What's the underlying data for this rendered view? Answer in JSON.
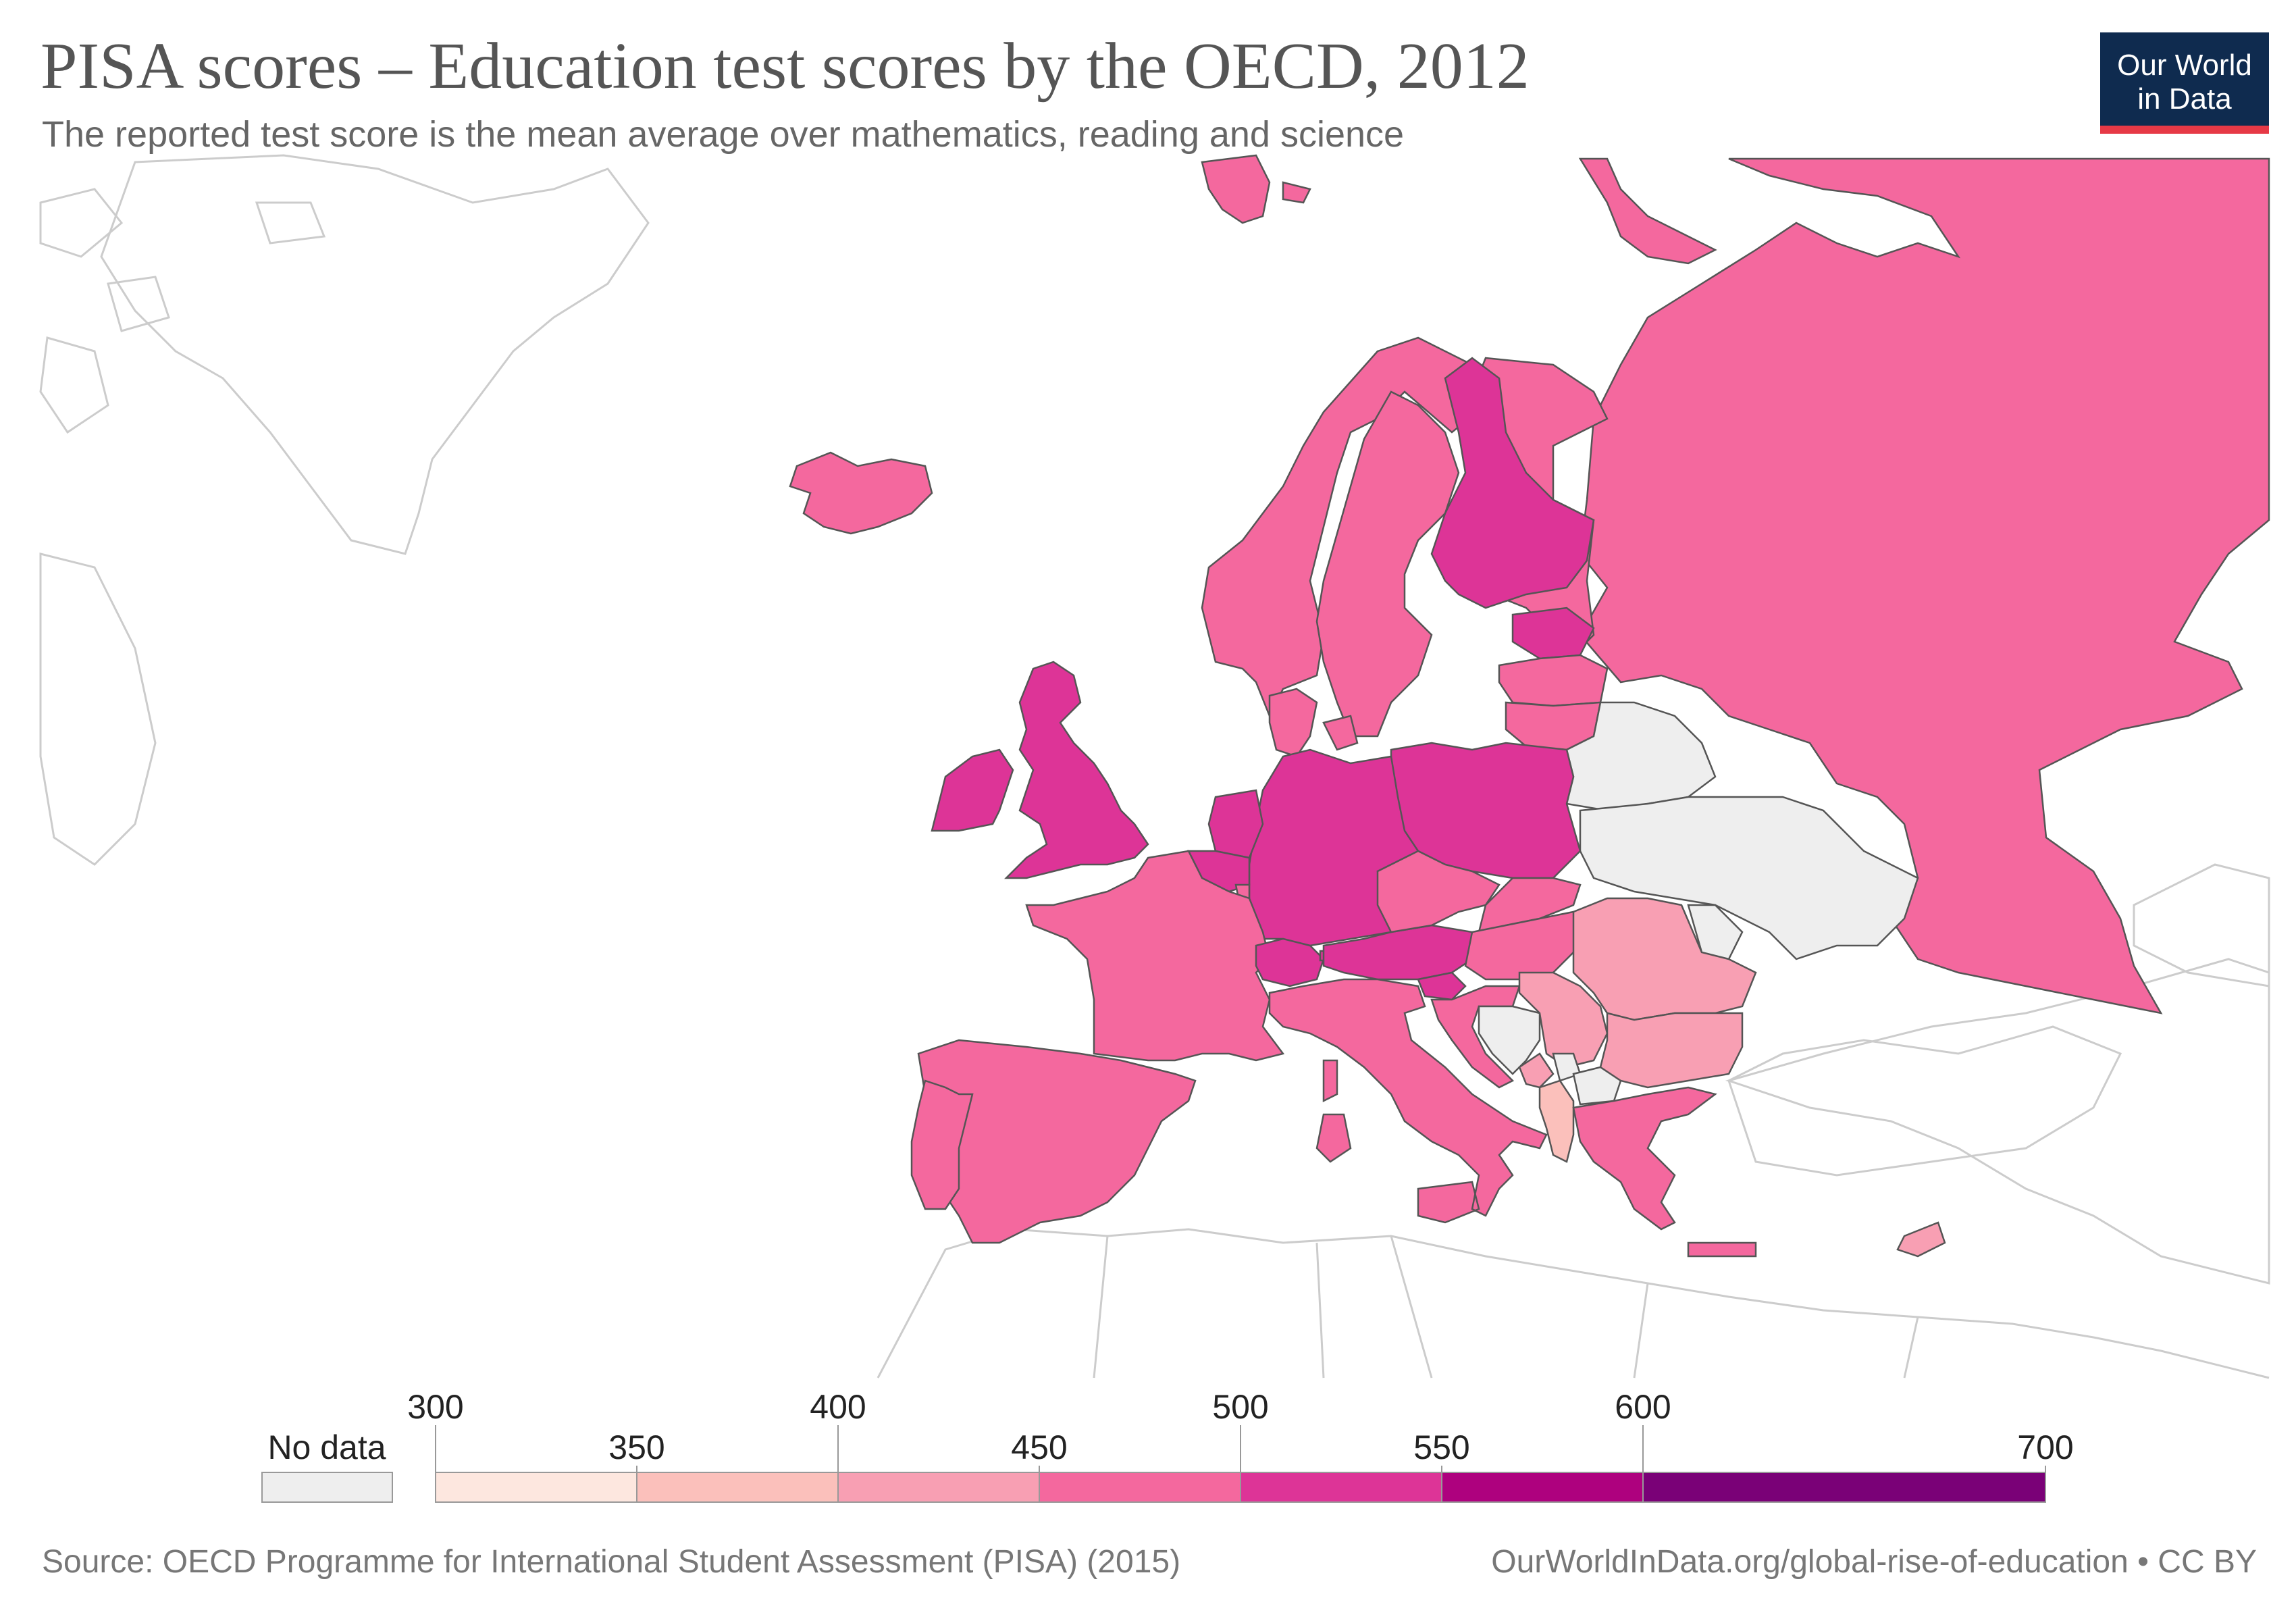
{
  "header": {
    "title": "PISA scores – Education test scores by the OECD, 2012",
    "subtitle": "The reported test score is the mean average over mathematics, reading and science"
  },
  "logo": {
    "line1": "Our World",
    "line2": "in Data",
    "bg_color": "#0f2b4f",
    "accent_color": "#e63946"
  },
  "legend": {
    "no_data_label": "No data",
    "no_data_color": "#eeeeee",
    "bins": [
      {
        "from": 300,
        "to": 350,
        "color": "#fde7df"
      },
      {
        "from": 350,
        "to": 400,
        "color": "#fbc0bb"
      },
      {
        "from": 400,
        "to": 450,
        "color": "#f89fb3"
      },
      {
        "from": 450,
        "to": 500,
        "color": "#f4689e"
      },
      {
        "from": 500,
        "to": 550,
        "color": "#dd3497"
      },
      {
        "from": 550,
        "to": 600,
        "color": "#ae017e"
      },
      {
        "from": 600,
        "to": 700,
        "color": "#7a0177"
      }
    ],
    "tick_labels": [
      "300",
      "350",
      "400",
      "450",
      "500",
      "550",
      "600",
      "700"
    ]
  },
  "map": {
    "region": "Europe",
    "categories": {
      "450-500": [
        "Iceland",
        "Norway",
        "Sweden",
        "Russia",
        "Latvia",
        "Lithuania",
        "Denmark",
        "France",
        "Spain",
        "Portugal",
        "Italy",
        "Czech Republic",
        "Slovakia",
        "Hungary",
        "Croatia",
        "Greece",
        "Luxembourg"
      ],
      "500-550": [
        "Finland",
        "Estonia",
        "United Kingdom",
        "Ireland",
        "Netherlands",
        "Belgium",
        "Germany",
        "Switzerland",
        "Austria",
        "Poland",
        "Slovenia",
        "Liechtenstein"
      ],
      "400-450": [
        "Romania",
        "Bulgaria",
        "Serbia",
        "Montenegro",
        "Cyprus"
      ],
      "350-400": [
        "Albania"
      ],
      "no_data": [
        "Belarus",
        "Ukraine",
        "Moldova",
        "Bosnia and Herzegovina",
        "North Macedonia",
        "Kosovo",
        "Turkey"
      ]
    }
  },
  "footer": {
    "source": "Source: OECD Programme for International Student Assessment (PISA) (2015)",
    "url": "OurWorldInData.org/global-rise-of-education • CC BY"
  }
}
